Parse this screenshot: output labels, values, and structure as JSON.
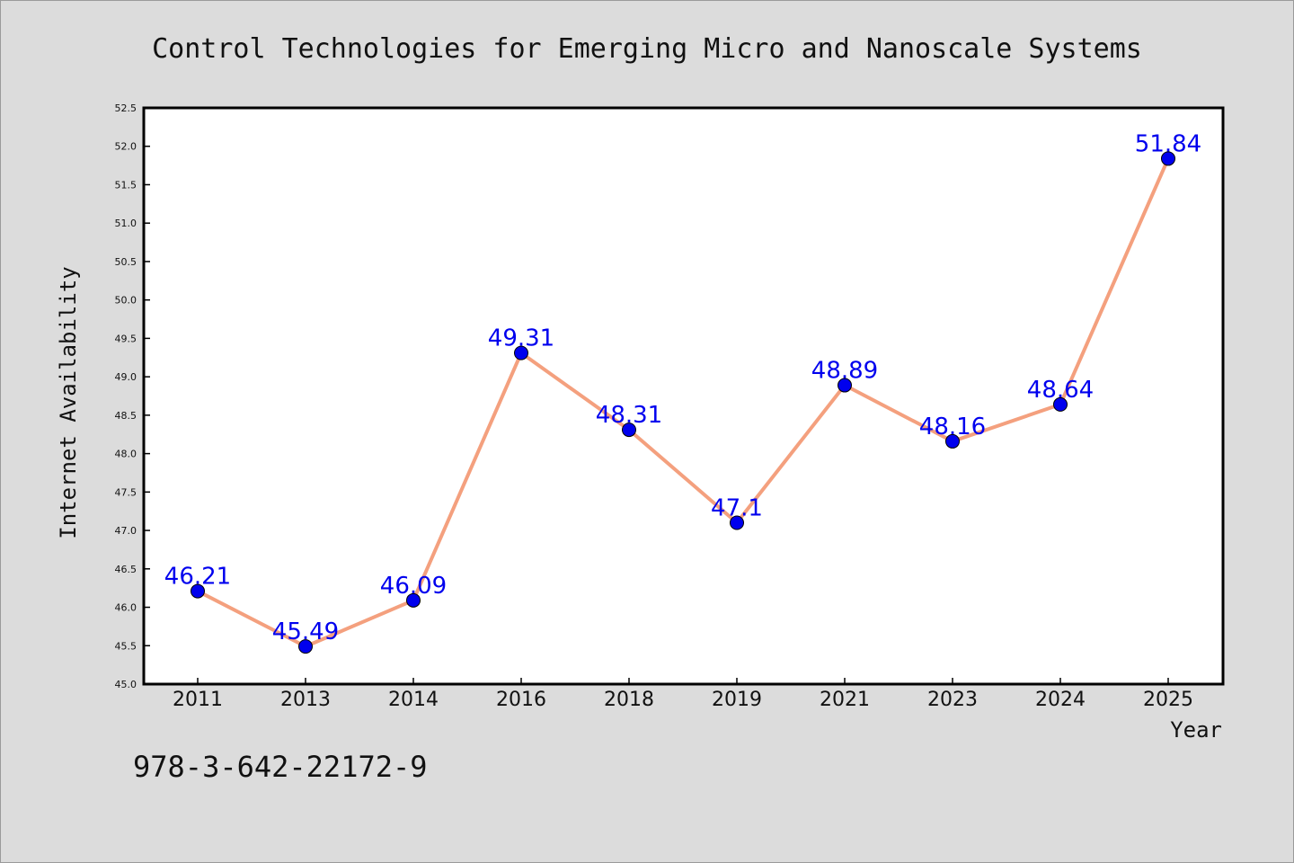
{
  "chart_data": {
    "type": "line",
    "title": "Control Technologies for Emerging Micro and Nanoscale Systems",
    "xlabel": "Year",
    "ylabel": "Internet Availability",
    "categories": [
      "2011",
      "2013",
      "2014",
      "2016",
      "2018",
      "2019",
      "2021",
      "2023",
      "2024",
      "2025"
    ],
    "values": [
      46.21,
      45.49,
      46.09,
      49.31,
      48.31,
      47.1,
      48.89,
      48.16,
      48.64,
      51.84
    ],
    "data_labels": [
      "46.21",
      "45.49",
      "46.09",
      "49.31",
      "48.31",
      "47.1",
      "48.89",
      "48.16",
      "48.64",
      "51.84"
    ],
    "ylim": [
      45.0,
      52.5
    ],
    "yticks": [
      "45.0",
      "45.5",
      "46.0",
      "46.5",
      "47.0",
      "47.5",
      "48.0",
      "48.5",
      "49.0",
      "49.5",
      "50.0",
      "50.5",
      "51.0",
      "51.5",
      "52.0",
      "52.5"
    ],
    "grid": false,
    "legend": "none",
    "line_color": "#f4a07e",
    "marker_color": "#0000ee",
    "label_color": "#0000ee"
  },
  "footer": {
    "isbn": "978-3-642-22172-9"
  }
}
